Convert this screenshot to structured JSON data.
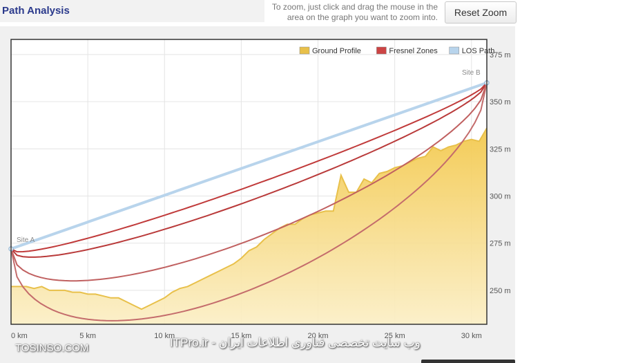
{
  "header": {
    "title": "Path Analysis",
    "zoom_hint": "To zoom, just click and drag the mouse in the area on the graph you want to zoom into.",
    "reset_zoom_label": "Reset Zoom"
  },
  "watermarks": {
    "left": "TOSINSO.COM",
    "right": "ITPro.ir - وب سایت تخصصی فناوری اطلاعات ایران"
  },
  "chart_data": {
    "type": "area",
    "x_unit": "km",
    "y_unit": "m",
    "xlim": [
      0,
      31
    ],
    "ylim": [
      232,
      383
    ],
    "x_ticks": [
      0,
      5,
      10,
      15,
      20,
      25,
      30
    ],
    "x_tick_labels": [
      "0 km",
      "5 km",
      "10 km",
      "15 km",
      "20 km",
      "25 km",
      "30 km"
    ],
    "y_ticks": [
      250,
      275,
      300,
      325,
      350,
      375
    ],
    "y_tick_labels": [
      "250 m",
      "275 m",
      "300 m",
      "325 m",
      "350 m",
      "375 m"
    ],
    "grid": true,
    "legend_position": "top-right",
    "legend": [
      {
        "label": "Ground Profile",
        "color": "#e8c04a"
      },
      {
        "label": "Fresnel Zones",
        "color": "#cc4444"
      },
      {
        "label": "LOS Path",
        "color": "#b8d4ec"
      }
    ],
    "annotations": {
      "site_a": {
        "label": "Site A",
        "x": 0,
        "y": 272
      },
      "site_b": {
        "label": "Site B",
        "x": 31,
        "y": 360
      }
    },
    "series": [
      {
        "name": "Ground Profile",
        "x": [
          0,
          1,
          1.5,
          2,
          2.5,
          3,
          3.5,
          4,
          4.5,
          5,
          5.5,
          6,
          6.5,
          7,
          7.5,
          8,
          8.5,
          9,
          9.5,
          10,
          10.5,
          11,
          11.5,
          12,
          12.5,
          13,
          13.5,
          14,
          14.5,
          15,
          15.5,
          16,
          16.5,
          17,
          17.5,
          18,
          18.5,
          19,
          19.5,
          20,
          20.5,
          21,
          21.5,
          22,
          22.5,
          23,
          23.5,
          24,
          24.5,
          25,
          25.5,
          26,
          26.5,
          27,
          27.5,
          28,
          28.5,
          29,
          29.5,
          30,
          30.5,
          31
        ],
        "y": [
          252,
          252,
          251,
          252,
          250,
          250,
          250,
          249,
          249,
          248,
          248,
          247,
          246,
          246,
          244,
          242,
          240,
          242,
          244,
          246,
          249,
          251,
          252,
          254,
          256,
          258,
          260,
          262,
          264,
          267,
          271,
          273,
          277,
          280,
          283,
          285,
          285,
          288,
          290,
          291,
          292,
          292,
          311,
          302,
          302,
          309,
          307,
          312,
          313,
          315,
          316,
          318,
          320,
          321,
          326,
          324,
          326,
          327,
          329,
          330,
          329,
          336
        ]
      },
      {
        "name": "LOS Path",
        "x": [
          0,
          31
        ],
        "y": [
          272,
          360
        ]
      }
    ]
  }
}
